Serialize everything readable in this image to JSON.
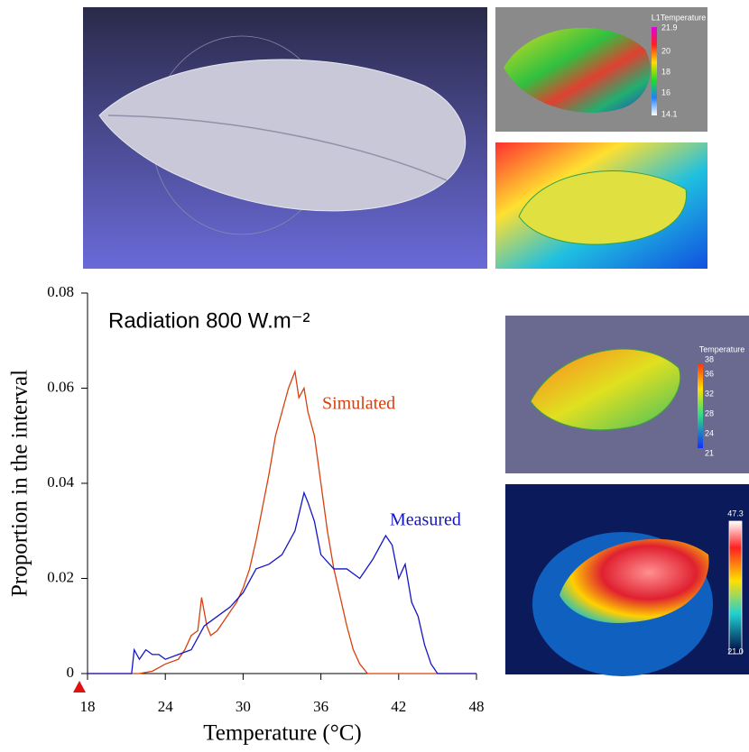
{
  "chart_data": {
    "type": "line",
    "title": "Radiation 800 W.m⁻²",
    "x_label": "Temperature (°C)",
    "y_label": "Proportion in the interval",
    "xlim": [
      18,
      48
    ],
    "xticks": [
      18,
      24,
      30,
      36,
      42,
      48
    ],
    "ylim": [
      0,
      0.08
    ],
    "yticks": [
      0,
      0.02,
      0.04,
      0.06,
      0.08
    ],
    "series": [
      {
        "name": "Simulated",
        "color": "#d8400f",
        "x": [
          18,
          21,
          22,
          23,
          24,
          25,
          25.5,
          26,
          26.5,
          26.8,
          27.2,
          27.5,
          28,
          28.5,
          29,
          29.5,
          30,
          30.5,
          31,
          31.5,
          32,
          32.5,
          33,
          33.5,
          34,
          34.3,
          34.7,
          35,
          35.5,
          36,
          36.5,
          37,
          37.5,
          38,
          38.5,
          39,
          39.6,
          48
        ],
        "values": [
          0,
          0,
          0,
          0.0005,
          0.002,
          0.003,
          0.005,
          0.008,
          0.009,
          0.016,
          0.01,
          0.008,
          0.009,
          0.011,
          0.013,
          0.015,
          0.018,
          0.022,
          0.028,
          0.035,
          0.042,
          0.05,
          0.055,
          0.06,
          0.0635,
          0.058,
          0.06,
          0.055,
          0.05,
          0.04,
          0.03,
          0.022,
          0.016,
          0.01,
          0.005,
          0.002,
          0,
          0
        ]
      },
      {
        "name": "Measured",
        "color": "#1515c8",
        "x": [
          18,
          21.4,
          21.6,
          22,
          22.5,
          23,
          23.5,
          24,
          25,
          26,
          27,
          28,
          29,
          30,
          31,
          32,
          33,
          34,
          34.7,
          35,
          35.5,
          36,
          37,
          38,
          39,
          40,
          41,
          41.5,
          42,
          42.5,
          43,
          43.5,
          44,
          44.5,
          45,
          48
        ],
        "values": [
          0,
          0,
          0.005,
          0.003,
          0.005,
          0.004,
          0.004,
          0.003,
          0.004,
          0.005,
          0.01,
          0.012,
          0.014,
          0.017,
          0.022,
          0.023,
          0.025,
          0.03,
          0.038,
          0.036,
          0.032,
          0.025,
          0.022,
          0.022,
          0.02,
          0.024,
          0.029,
          0.027,
          0.02,
          0.023,
          0.015,
          0.012,
          0.006,
          0.002,
          0,
          0
        ]
      }
    ]
  },
  "panels": {
    "model_colorbar": {
      "title": "L1Temperature",
      "labels": [
        "21.9",
        "20",
        "18",
        "16",
        "14.1"
      ]
    },
    "sim_colorbar": {
      "title": "Temperature",
      "labels": [
        "38",
        "36",
        "32",
        "28",
        "24",
        "21"
      ]
    },
    "ir_colorbar": {
      "labels": [
        "47.3",
        "21.0"
      ]
    }
  }
}
